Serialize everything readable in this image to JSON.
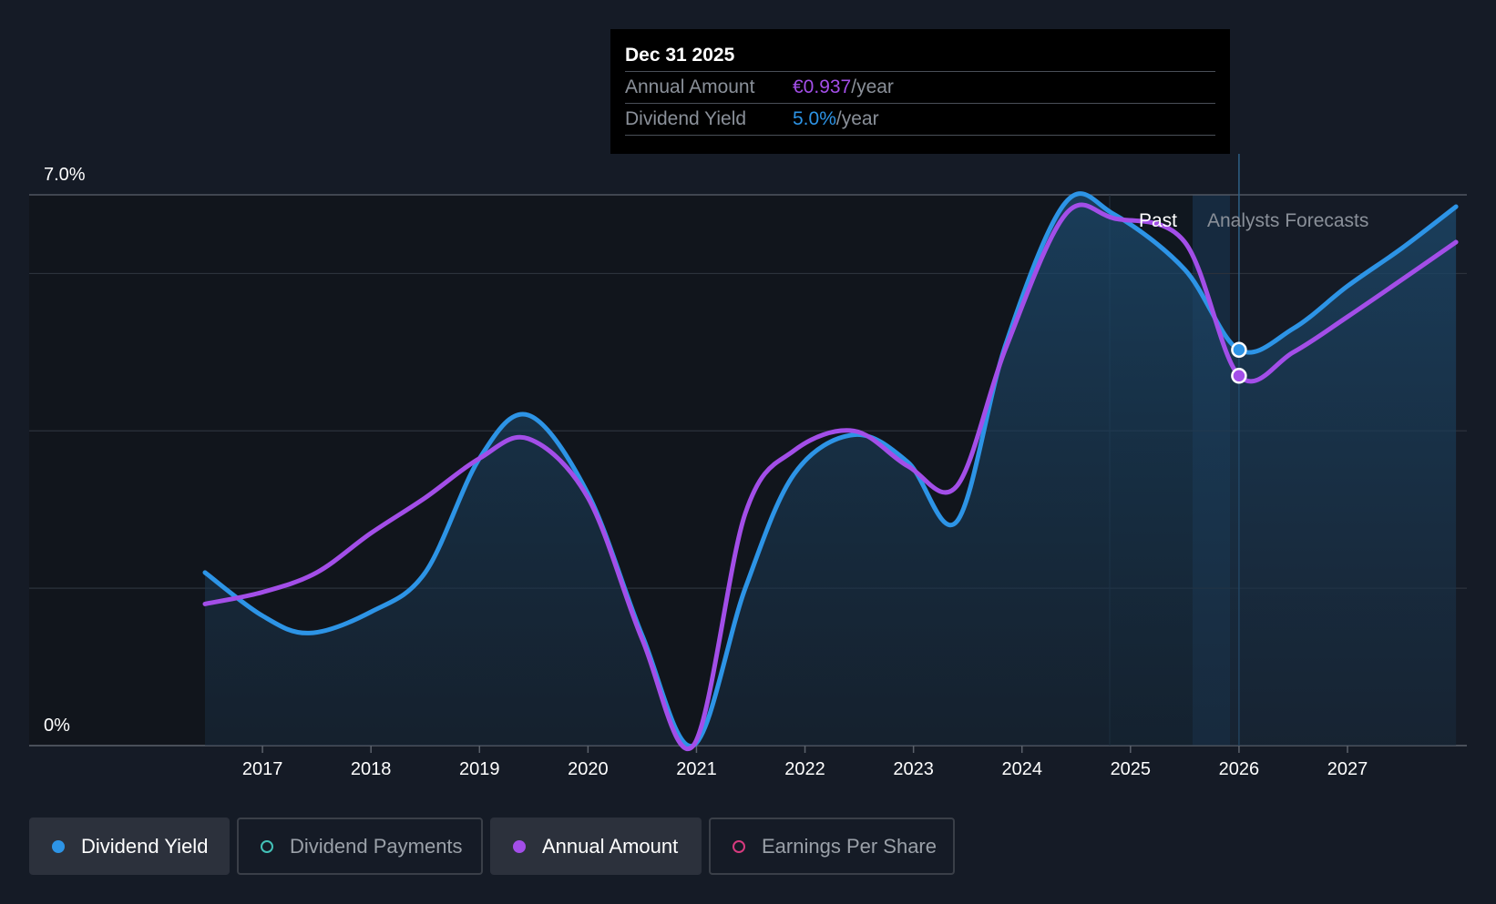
{
  "chart_data": {
    "type": "line",
    "y_axis": {
      "min": 0,
      "max": 7.0,
      "tick_labels": [
        "7.0%",
        "0%"
      ]
    },
    "x_axis": {
      "years": [
        2017,
        2018,
        2019,
        2020,
        2021,
        2022,
        2023,
        2024,
        2025,
        2026,
        2027
      ]
    },
    "regions": {
      "past_label": "Past",
      "forecast_label": "Analysts Forecasts"
    },
    "series": [
      {
        "name": "Dividend Yield",
        "color": "#2d94e6",
        "points": [
          [
            2016.47,
            2.2
          ],
          [
            2017.0,
            1.65
          ],
          [
            2017.43,
            1.43
          ],
          [
            2018.0,
            1.7
          ],
          [
            2018.5,
            2.2
          ],
          [
            2019.0,
            3.65
          ],
          [
            2019.45,
            4.2
          ],
          [
            2020.0,
            3.2
          ],
          [
            2020.5,
            1.4
          ],
          [
            2020.97,
            0.0
          ],
          [
            2021.45,
            2.0
          ],
          [
            2021.9,
            3.45
          ],
          [
            2022.45,
            3.95
          ],
          [
            2022.95,
            3.6
          ],
          [
            2023.4,
            2.85
          ],
          [
            2023.85,
            5.1
          ],
          [
            2024.4,
            6.9
          ],
          [
            2024.85,
            6.75
          ],
          [
            2025.5,
            6.05
          ],
          [
            2026.0,
            5.03
          ],
          [
            2026.5,
            5.3
          ],
          [
            2027.0,
            5.84
          ],
          [
            2027.5,
            6.32
          ],
          [
            2028.0,
            6.85
          ]
        ]
      },
      {
        "name": "Annual Amount",
        "color": "#a34ee8",
        "points": [
          [
            2016.47,
            1.8
          ],
          [
            2017.0,
            1.95
          ],
          [
            2017.5,
            2.2
          ],
          [
            2018.0,
            2.7
          ],
          [
            2018.5,
            3.15
          ],
          [
            2019.0,
            3.65
          ],
          [
            2019.45,
            3.9
          ],
          [
            2020.0,
            3.15
          ],
          [
            2020.5,
            1.35
          ],
          [
            2020.97,
            0.0
          ],
          [
            2021.45,
            2.95
          ],
          [
            2021.9,
            3.75
          ],
          [
            2022.45,
            4.0
          ],
          [
            2022.95,
            3.55
          ],
          [
            2023.4,
            3.3
          ],
          [
            2023.85,
            5.05
          ],
          [
            2024.4,
            6.75
          ],
          [
            2024.85,
            6.7
          ],
          [
            2025.5,
            6.4
          ],
          [
            2026.0,
            4.7
          ],
          [
            2026.5,
            5.0
          ],
          [
            2027.0,
            5.45
          ],
          [
            2027.5,
            5.92
          ],
          [
            2028.0,
            6.4
          ]
        ]
      }
    ],
    "highlight": {
      "x": 2026.0,
      "values": [
        5.03,
        4.7
      ]
    }
  },
  "tooltip": {
    "date": "Dec 31 2025",
    "annual_amount_label": "Annual Amount",
    "annual_amount_value": "€0.937",
    "annual_amount_suffix": "/year",
    "dividend_yield_label": "Dividend Yield",
    "dividend_yield_value": "5.0%",
    "dividend_yield_suffix": "/year"
  },
  "legend": [
    {
      "label": "Dividend Yield",
      "color": "#2d94e6",
      "active": true
    },
    {
      "label": "Dividend Payments",
      "color": "#43c2b8",
      "active": false
    },
    {
      "label": "Annual Amount",
      "color": "#a34ee8",
      "active": true
    },
    {
      "label": "Earnings Per Share",
      "color": "#d63a7e",
      "active": false
    }
  ]
}
